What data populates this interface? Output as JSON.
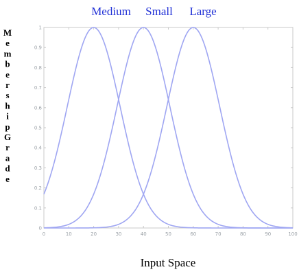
{
  "chart_data": {
    "type": "line",
    "title": "",
    "xlabel": "Input Space",
    "ylabel": "MembershipGrade",
    "xlim": [
      0,
      100
    ],
    "ylim": [
      0,
      1
    ],
    "xticks": [
      "0",
      "10",
      "20",
      "30",
      "40",
      "50",
      "60",
      "70",
      "80",
      "90",
      "100"
    ],
    "yticks": [
      "0",
      "0.1",
      "0.2",
      "0.3",
      "0.4",
      "0.5",
      "0.6",
      "0.7",
      "0.8",
      "0.9",
      "1"
    ],
    "grid": false,
    "legend": [
      "Medium",
      "Small",
      "Large"
    ],
    "series": [
      {
        "name": "Medium",
        "center": 20,
        "sigma": 10.6,
        "x": [
          0,
          5,
          10,
          15,
          20,
          25,
          30,
          35,
          40,
          45,
          50,
          55,
          60,
          65,
          70,
          75,
          80,
          85,
          90,
          95,
          100
        ],
        "y": [
          0.17,
          0.37,
          0.64,
          0.89,
          1.0,
          0.89,
          0.64,
          0.37,
          0.17,
          0.06,
          0.02,
          0.004,
          0.001,
          0,
          0,
          0,
          0,
          0,
          0,
          0,
          0
        ]
      },
      {
        "name": "Small",
        "center": 40,
        "sigma": 10.6,
        "x": [
          0,
          5,
          10,
          15,
          20,
          25,
          30,
          35,
          40,
          45,
          50,
          55,
          60,
          65,
          70,
          75,
          80,
          85,
          90,
          95,
          100
        ],
        "y": [
          0.001,
          0.004,
          0.02,
          0.06,
          0.17,
          0.37,
          0.64,
          0.89,
          1.0,
          0.89,
          0.64,
          0.37,
          0.17,
          0.06,
          0.02,
          0.004,
          0.001,
          0,
          0,
          0,
          0
        ]
      },
      {
        "name": "Large",
        "center": 60,
        "sigma": 10.6,
        "x": [
          0,
          5,
          10,
          15,
          20,
          25,
          30,
          35,
          40,
          45,
          50,
          55,
          60,
          65,
          70,
          75,
          80,
          85,
          90,
          95,
          100
        ],
        "y": [
          0,
          0,
          0,
          0,
          0.001,
          0.004,
          0.02,
          0.06,
          0.17,
          0.37,
          0.64,
          0.89,
          1.0,
          0.89,
          0.64,
          0.37,
          0.17,
          0.06,
          0.02,
          0.004,
          0.001
        ]
      }
    ],
    "colors": {
      "line": "#9fa6f2",
      "legend": "#1f2fd6",
      "axis": "#c8c8c8",
      "tick_label": "#9aa0a6"
    }
  }
}
